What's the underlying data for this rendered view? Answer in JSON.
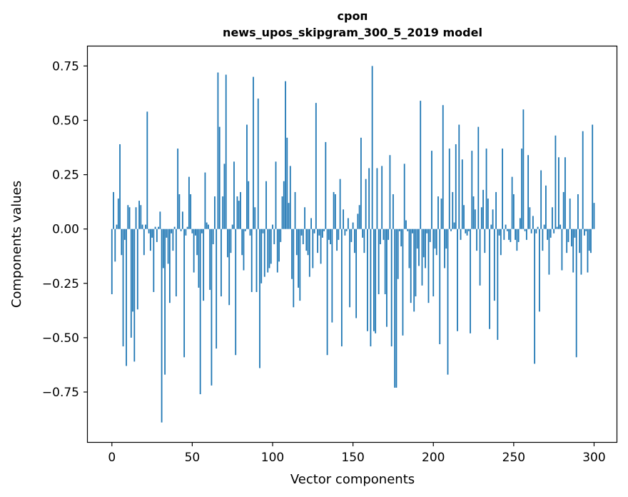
{
  "chart_data": {
    "type": "bar",
    "title": "сроп",
    "subtitle": "news_upos_skipgram_300_5_2019 model",
    "xlabel": "Vector components",
    "ylabel": "Components values",
    "xlim": [
      -15,
      314
    ],
    "ylim": [
      -0.98,
      0.84
    ],
    "xticks": [
      0,
      50,
      100,
      150,
      200,
      250,
      300
    ],
    "yticks": [
      0.75,
      0.5,
      0.25,
      0.0,
      -0.25,
      -0.5,
      -0.75
    ],
    "ytick_labels": [
      "0.75",
      "0.50",
      "0.25",
      "0.00",
      "−0.25",
      "−0.50",
      "−0.75"
    ],
    "bar_color": "#1f77b4",
    "grid": false,
    "values": [
      -0.3,
      0.17,
      -0.15,
      0.02,
      0.14,
      0.39,
      -0.12,
      -0.54,
      -0.05,
      -0.63,
      0.11,
      0.1,
      -0.5,
      -0.38,
      -0.61,
      0.1,
      -0.37,
      0.13,
      0.11,
      0.02,
      -0.12,
      0.02,
      0.54,
      -0.02,
      -0.1,
      -0.04,
      -0.29,
      0.01,
      -0.06,
      0.01,
      0.08,
      -0.89,
      -0.18,
      -0.67,
      -0.04,
      -0.16,
      -0.34,
      -0.02,
      -0.1,
      0.01,
      -0.31,
      0.37,
      0.16,
      -0.01,
      0.08,
      -0.59,
      -0.03,
      0.01,
      0.24,
      0.16,
      -0.02,
      -0.2,
      -0.03,
      -0.12,
      -0.27,
      -0.76,
      -0.02,
      -0.33,
      0.26,
      0.03,
      0.02,
      -0.28,
      -0.72,
      -0.07,
      0.15,
      -0.55,
      0.72,
      0.47,
      -0.31,
      0.15,
      0.3,
      0.71,
      -0.13,
      -0.35,
      -0.11,
      0.02,
      0.31,
      -0.58,
      0.15,
      0.13,
      0.17,
      -0.12,
      -0.19,
      -0.01,
      0.48,
      0.22,
      -0.03,
      -0.29,
      0.7,
      0.1,
      -0.29,
      0.6,
      -0.64,
      -0.25,
      -0.02,
      -0.22,
      0.22,
      -0.2,
      -0.18,
      -0.16,
      0.02,
      -0.07,
      0.31,
      -0.2,
      -0.15,
      -0.06,
      0.15,
      0.22,
      0.68,
      0.42,
      0.12,
      0.29,
      -0.23,
      -0.36,
      0.17,
      -0.12,
      -0.27,
      -0.33,
      -0.03,
      -0.07,
      0.1,
      -0.1,
      -0.12,
      -0.22,
      0.05,
      -0.18,
      -0.02,
      0.58,
      -0.11,
      -0.03,
      -0.16,
      -0.04,
      -0.01,
      0.4,
      -0.58,
      -0.05,
      -0.07,
      -0.43,
      0.17,
      0.16,
      -0.1,
      -0.05,
      0.23,
      -0.54,
      0.09,
      -0.03,
      -0.01,
      0.05,
      -0.36,
      -0.06,
      0.03,
      -0.11,
      -0.41,
      0.07,
      0.11,
      0.42,
      -0.04,
      -0.11,
      0.23,
      -0.47,
      0.28,
      -0.54,
      0.75,
      -0.47,
      -0.48,
      0.28,
      -0.3,
      -0.07,
      0.29,
      -0.05,
      -0.3,
      -0.45,
      -0.05,
      0.34,
      -0.54,
      0.16,
      -0.73,
      -0.73,
      -0.23,
      -0.01,
      -0.08,
      -0.49,
      0.3,
      0.04,
      -0.01,
      -0.18,
      -0.34,
      -0.02,
      -0.38,
      -0.31,
      -0.09,
      -0.17,
      0.59,
      -0.26,
      -0.13,
      -0.18,
      -0.02,
      -0.34,
      -0.06,
      0.36,
      -0.31,
      -0.09,
      -0.12,
      0.15,
      -0.53,
      0.14,
      0.57,
      -0.18,
      -0.09,
      -0.67,
      0.37,
      -0.01,
      0.17,
      0.03,
      0.39,
      -0.47,
      0.48,
      -0.05,
      0.32,
      0.11,
      -0.02,
      -0.03,
      -0.01,
      -0.48,
      0.36,
      0.15,
      0.09,
      -0.1,
      0.47,
      -0.26,
      0.1,
      0.18,
      -0.11,
      0.37,
      0.14,
      -0.46,
      0.02,
      0.09,
      -0.33,
      0.17,
      -0.51,
      -0.03,
      -0.12,
      0.37,
      -0.05,
      0.02,
      -0.01,
      -0.05,
      -0.06,
      0.24,
      0.16,
      -0.05,
      -0.1,
      -0.06,
      0.05,
      0.37,
      0.55,
      -0.01,
      -0.05,
      0.34,
      0.1,
      -0.02,
      0.06,
      -0.62,
      -0.02,
      0.01,
      -0.38,
      0.27,
      -0.1,
      0.02,
      0.2,
      -0.05,
      -0.21,
      -0.04,
      0.1,
      -0.02,
      0.43,
      0.01,
      0.33,
      0.02,
      -0.19,
      0.17,
      0.33,
      -0.11,
      -0.06,
      0.14,
      -0.08,
      -0.2,
      -0.04,
      -0.59,
      0.16,
      -0.11,
      -0.21,
      0.45,
      -0.03,
      -0.01,
      -0.2,
      -0.1,
      -0.11,
      0.48,
      0.12
    ]
  }
}
